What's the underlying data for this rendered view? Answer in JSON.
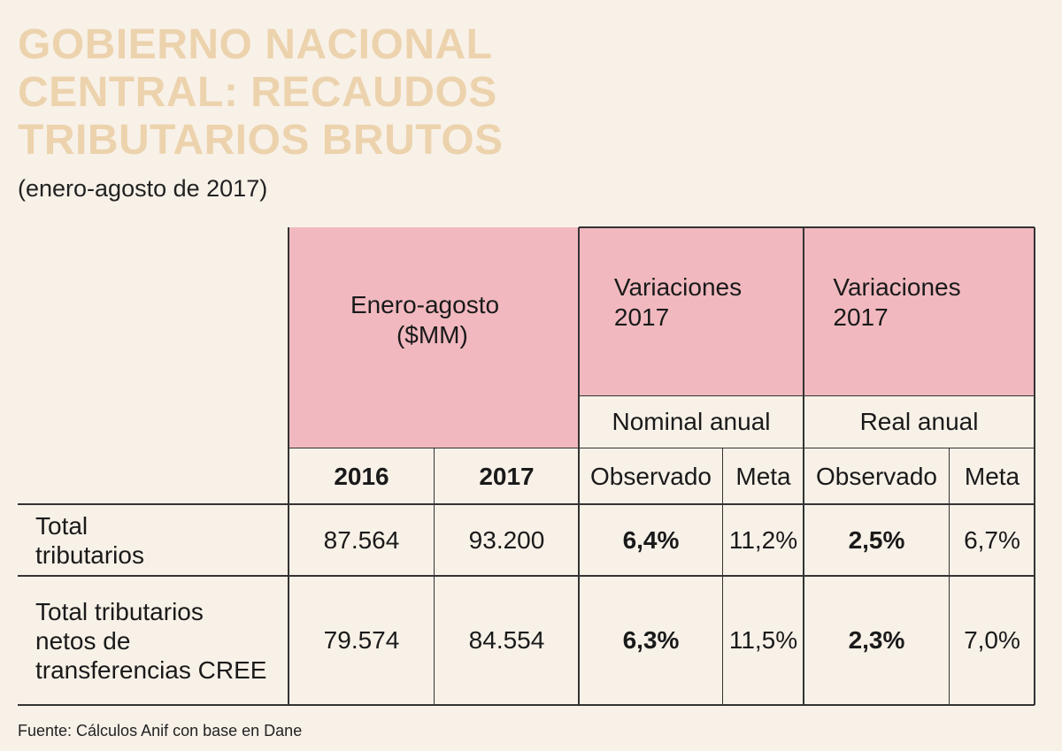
{
  "title_lines": [
    "GOBIERNO NACIONAL",
    "CENTRAL: RECAUDOS",
    "TRIBUTARIOS BRUTOS"
  ],
  "subtitle": "(enero-agosto de 2017)",
  "header": {
    "group1_line1": "Enero-agosto",
    "group1_line2": "($MM)",
    "group2_line1": "Variaciones",
    "group2_line2": "2017",
    "group3_line1": "Variaciones",
    "group3_line2": "2017",
    "sub2": "Nominal anual",
    "sub3": "Real anual",
    "cols": [
      "2016",
      "2017",
      "Observado",
      "Meta",
      "Observado",
      "Meta"
    ]
  },
  "rows": [
    {
      "label_lines": [
        "Total",
        "tributarios"
      ],
      "values": [
        "87.564",
        "93.200",
        "6,4%",
        "11,2%",
        "2,5%",
        "6,7%"
      ]
    },
    {
      "label_lines": [
        "Total tributarios",
        "netos de",
        "transferencias CREE"
      ],
      "values": [
        "79.574",
        "84.554",
        "6,3%",
        "11,5%",
        "2,3%",
        "7,0%"
      ]
    }
  ],
  "footer": "Fuente: Cálculos Anif con base en Dane",
  "colors": {
    "title": "#ecd3ad",
    "header_bg": "#f1b9bf",
    "background": "#f8f1e8"
  }
}
